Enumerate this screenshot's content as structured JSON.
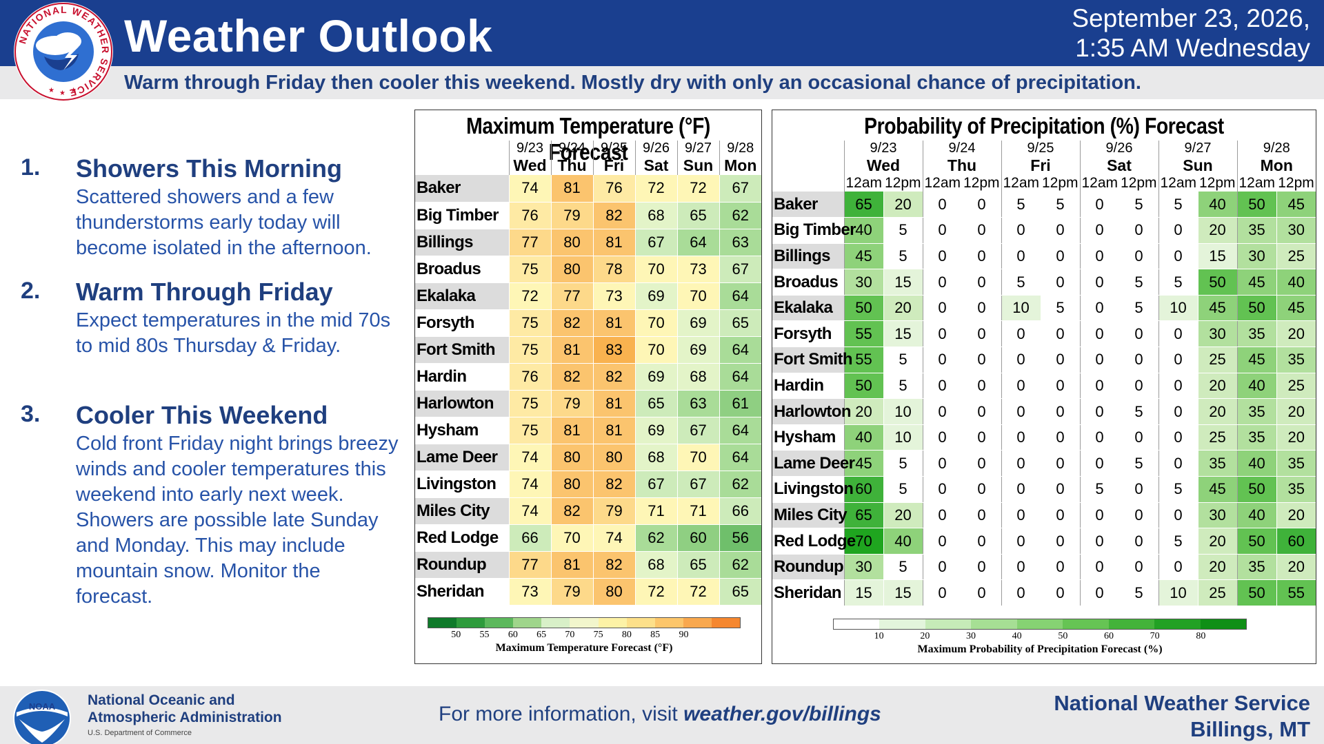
{
  "header": {
    "title": "Weather Outlook",
    "date_line1": "September 23, 2026,",
    "date_line2": "1:35 AM Wednesday",
    "subtitle": "Warm through Friday then cooler this weekend. Mostly dry with only an occasional chance of precipitation.",
    "logo_text": "NATIONAL WEATHER SERVICE"
  },
  "bullets": [
    {
      "num": "1.",
      "heading": "Showers This Morning",
      "body": "Scattered showers and a few thunderstorms early today will become isolated in the afternoon."
    },
    {
      "num": "2.",
      "heading": "Warm Through Friday",
      "body": "Expect temperatures in the mid 70s to mid 80s Thursday & Friday."
    },
    {
      "num": "3.",
      "heading": "Cooler This Weekend",
      "body": "Cold front Friday night brings breezy winds and cooler temperatures this weekend into early next week. Showers are possible late Sunday and Monday. This may include mountain snow. Monitor the forecast."
    }
  ],
  "temp_table": {
    "title": "Maximum Temperature (°F) Forecast",
    "dates": [
      "9/23",
      "9/24",
      "9/25",
      "9/26",
      "9/27",
      "9/28"
    ],
    "days": [
      "Wed",
      "Thu",
      "Fri",
      "Sat",
      "Sun",
      "Mon"
    ],
    "rows": [
      {
        "name": "Baker",
        "values": [
          74,
          81,
          76,
          72,
          72,
          67
        ]
      },
      {
        "name": "Big Timber",
        "values": [
          76,
          79,
          82,
          68,
          65,
          62
        ]
      },
      {
        "name": "Billings",
        "values": [
          77,
          80,
          81,
          67,
          64,
          63
        ]
      },
      {
        "name": "Broadus",
        "values": [
          75,
          80,
          78,
          70,
          73,
          67
        ]
      },
      {
        "name": "Ekalaka",
        "values": [
          72,
          77,
          73,
          69,
          70,
          64
        ]
      },
      {
        "name": "Forsyth",
        "values": [
          75,
          82,
          81,
          70,
          69,
          65
        ]
      },
      {
        "name": "Fort Smith",
        "values": [
          75,
          81,
          83,
          70,
          69,
          64
        ]
      },
      {
        "name": "Hardin",
        "values": [
          76,
          82,
          82,
          69,
          68,
          64
        ]
      },
      {
        "name": "Harlowton",
        "values": [
          75,
          79,
          81,
          65,
          63,
          61
        ]
      },
      {
        "name": "Hysham",
        "values": [
          75,
          81,
          81,
          69,
          67,
          64
        ]
      },
      {
        "name": "Lame Deer",
        "values": [
          74,
          80,
          80,
          68,
          70,
          64
        ]
      },
      {
        "name": "Livingston",
        "values": [
          74,
          80,
          82,
          67,
          67,
          62
        ]
      },
      {
        "name": "Miles City",
        "values": [
          74,
          82,
          79,
          71,
          71,
          66
        ]
      },
      {
        "name": "Red Lodge",
        "values": [
          66,
          70,
          74,
          62,
          60,
          56
        ]
      },
      {
        "name": "Roundup",
        "values": [
          77,
          81,
          82,
          68,
          65,
          62
        ]
      },
      {
        "name": "Sheridan",
        "values": [
          73,
          79,
          80,
          72,
          72,
          65
        ]
      }
    ],
    "legend": {
      "ticks": [
        "50",
        "55",
        "60",
        "65",
        "70",
        "75",
        "80",
        "85",
        "90"
      ],
      "label": "Maximum Temperature Forecast (°F)",
      "colors": [
        "#0f7a2a",
        "#2e9b3c",
        "#5cb85c",
        "#9fd58b",
        "#d8f0c8",
        "#f2f6cc",
        "#fdf2a6",
        "#fde08a",
        "#fcc66b",
        "#f9a84e",
        "#f5872f"
      ]
    }
  },
  "pop_table": {
    "title": "Probability of Precipitation (%) Forecast",
    "dates": [
      "9/23",
      "9/24",
      "9/25",
      "9/26",
      "9/27",
      "9/28"
    ],
    "days": [
      "Wed",
      "Thu",
      "Fri",
      "Sat",
      "Sun",
      "Mon"
    ],
    "halves": [
      "12am",
      "12pm"
    ],
    "rows": [
      {
        "name": "Baker",
        "values": [
          65,
          20,
          0,
          0,
          5,
          5,
          0,
          5,
          5,
          40,
          50,
          45
        ]
      },
      {
        "name": "Big Timber",
        "values": [
          40,
          5,
          0,
          0,
          0,
          0,
          0,
          0,
          0,
          20,
          35,
          30
        ]
      },
      {
        "name": "Billings",
        "values": [
          45,
          5,
          0,
          0,
          0,
          0,
          0,
          0,
          0,
          15,
          30,
          25
        ]
      },
      {
        "name": "Broadus",
        "values": [
          30,
          15,
          0,
          0,
          5,
          0,
          0,
          5,
          5,
          50,
          45,
          40
        ]
      },
      {
        "name": "Ekalaka",
        "values": [
          50,
          20,
          0,
          0,
          10,
          5,
          0,
          5,
          10,
          45,
          50,
          45
        ]
      },
      {
        "name": "Forsyth",
        "values": [
          55,
          15,
          0,
          0,
          0,
          0,
          0,
          0,
          0,
          30,
          35,
          20
        ]
      },
      {
        "name": "Fort Smith",
        "values": [
          55,
          5,
          0,
          0,
          0,
          0,
          0,
          0,
          0,
          25,
          45,
          35
        ]
      },
      {
        "name": "Hardin",
        "values": [
          50,
          5,
          0,
          0,
          0,
          0,
          0,
          0,
          0,
          20,
          40,
          25
        ]
      },
      {
        "name": "Harlowton",
        "values": [
          20,
          10,
          0,
          0,
          0,
          0,
          0,
          5,
          0,
          20,
          35,
          20
        ]
      },
      {
        "name": "Hysham",
        "values": [
          40,
          10,
          0,
          0,
          0,
          0,
          0,
          0,
          0,
          25,
          35,
          20
        ]
      },
      {
        "name": "Lame Deer",
        "values": [
          45,
          5,
          0,
          0,
          0,
          0,
          0,
          5,
          0,
          35,
          40,
          35
        ]
      },
      {
        "name": "Livingston",
        "values": [
          60,
          5,
          0,
          0,
          0,
          0,
          5,
          0,
          5,
          45,
          50,
          35
        ]
      },
      {
        "name": "Miles City",
        "values": [
          65,
          20,
          0,
          0,
          0,
          0,
          0,
          0,
          0,
          30,
          40,
          20
        ]
      },
      {
        "name": "Red Lodge",
        "values": [
          70,
          40,
          0,
          0,
          0,
          0,
          0,
          0,
          5,
          20,
          50,
          60
        ]
      },
      {
        "name": "Roundup",
        "values": [
          30,
          5,
          0,
          0,
          0,
          0,
          0,
          0,
          0,
          20,
          35,
          20
        ]
      },
      {
        "name": "Sheridan",
        "values": [
          15,
          15,
          0,
          0,
          0,
          0,
          0,
          5,
          10,
          25,
          50,
          55
        ]
      }
    ],
    "legend": {
      "ticks": [
        "10",
        "20",
        "30",
        "40",
        "50",
        "60",
        "70",
        "80"
      ],
      "label": "Maximum Probability of Precipitation Forecast (%)",
      "colors": [
        "#ffffff",
        "#e3f5dc",
        "#c6ebb8",
        "#a6df94",
        "#86d273",
        "#66c454",
        "#43b33a",
        "#22a124",
        "#0f8f16"
      ]
    }
  },
  "footer": {
    "noaa_line1": "National Oceanic and",
    "noaa_line2": "Atmospheric Administration",
    "noaa_sub": "U.S. Department of Commerce",
    "noaa_logo_text": "NOAA",
    "info_prefix": "For more information, visit ",
    "info_url": "weather.gov/billings",
    "office_line1": "National Weather Service",
    "office_line2": "Billings, MT"
  }
}
